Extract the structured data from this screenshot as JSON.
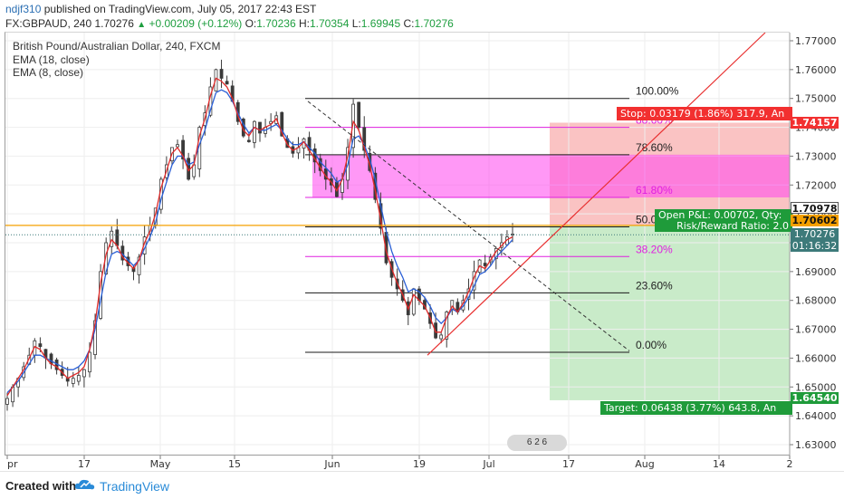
{
  "header": {
    "author": "ndjf310",
    "published_text": "published on TradingView.com, July 05, 2017 22:43 EST",
    "symbol": "FX:GBPAUD, 240",
    "last": "1.70276",
    "change": "+0.00209 (+0.12%)",
    "o_label": "O:",
    "o_value": "1.70236",
    "h_label": "H:",
    "h_value": "1.70354",
    "l_label": "L:",
    "l_value": "1.69945",
    "c_label": "C:",
    "c_value": "1.70276"
  },
  "legend": {
    "title": "British Pound/Australian Dollar, 240, FXCM",
    "ema1": "EMA (18, close)",
    "ema2": "EMA (8, close)"
  },
  "price_axis": {
    "ticks": [
      "1.77000",
      "1.76000",
      "1.75000",
      "1.74000",
      "1.73000",
      "1.72000",
      "1.71000",
      "1.70000",
      "1.69000",
      "1.68000",
      "1.67000",
      "1.66000",
      "1.65000",
      "1.64000",
      "1.63000"
    ],
    "tags": {
      "stop": "1.74157",
      "top": "1.70978",
      "entry": "1.70602",
      "last": "1.70276",
      "countdown": "01:16:32",
      "target": "1.64540"
    }
  },
  "time_axis": {
    "labels": [
      "pr",
      "17",
      "May",
      "15",
      "Jun",
      "19",
      "Jul",
      "17",
      "Aug",
      "14",
      "2"
    ]
  },
  "fib": {
    "levels": [
      {
        "label": "100.00%",
        "price": 1.75
      },
      {
        "label": "88.60%",
        "price": 1.74
      },
      {
        "label": "78.60%",
        "price": 1.7305
      },
      {
        "label": "61.80%",
        "price": 1.7157
      },
      {
        "label": "50.00%",
        "price": 1.7055
      },
      {
        "label": "38.20%",
        "price": 1.6952
      },
      {
        "label": "23.60%",
        "price": 1.6826
      },
      {
        "label": "0.00%",
        "price": 1.662
      }
    ]
  },
  "position": {
    "stop_text": "Stop: 0.03179 (1.86%) 317.9, An",
    "open_pl_text": "Open P&L: 0.00702, Qty:",
    "rr_text": "Risk/Reward Ratio: 2.0",
    "target_text": "Target: 0.06438 (3.77%) 643.8, An"
  },
  "events_icon_text": "6 2 6",
  "footer": {
    "created": "Created with",
    "brand": "TradingView"
  },
  "chart_data": {
    "type": "candlestick",
    "title": "British Pound/Australian Dollar, 240, FXCM",
    "ylim": [
      1.627,
      1.773
    ],
    "x": [
      "pr",
      "17",
      "May",
      "15",
      "Jun",
      "19",
      "Jul",
      "17",
      "Aug",
      "14",
      "2"
    ],
    "close_path": [
      1.646,
      1.65,
      1.653,
      1.657,
      1.661,
      1.666,
      1.664,
      1.66,
      1.658,
      1.656,
      1.654,
      1.652,
      1.653,
      1.654,
      1.656,
      1.662,
      1.673,
      1.69,
      1.7,
      1.704,
      1.699,
      1.694,
      1.692,
      1.69,
      1.695,
      1.702,
      1.706,
      1.712,
      1.722,
      1.727,
      1.733,
      1.734,
      1.729,
      1.722,
      1.727,
      1.74,
      1.745,
      1.754,
      1.76,
      1.757,
      1.755,
      1.749,
      1.742,
      1.737,
      1.735,
      1.742,
      1.738,
      1.74,
      1.742,
      1.744,
      1.737,
      1.733,
      1.731,
      1.733,
      1.736,
      1.732,
      1.728,
      1.725,
      1.722,
      1.72,
      1.716,
      1.722,
      1.733,
      1.748,
      1.74,
      1.732,
      1.725,
      1.715,
      1.705,
      1.693,
      1.688,
      1.684,
      1.68,
      1.675,
      1.684,
      1.68,
      1.677,
      1.672,
      1.667,
      1.668,
      1.676,
      1.68,
      1.676,
      1.68,
      1.684,
      1.69,
      1.694,
      1.692,
      1.695,
      1.698,
      1.7,
      1.702,
      1.703
    ],
    "ema18_path": [
      1.648,
      1.65,
      1.652,
      1.655,
      1.658,
      1.661,
      1.661,
      1.66,
      1.659,
      1.658,
      1.657,
      1.656,
      1.656,
      1.657,
      1.659,
      1.663,
      1.67,
      1.68,
      1.69,
      1.696,
      1.697,
      1.696,
      1.694,
      1.692,
      1.694,
      1.698,
      1.702,
      1.707,
      1.715,
      1.721,
      1.727,
      1.73,
      1.73,
      1.727,
      1.728,
      1.734,
      1.739,
      1.746,
      1.752,
      1.753,
      1.752,
      1.749,
      1.745,
      1.741,
      1.738,
      1.74,
      1.739,
      1.739,
      1.74,
      1.741,
      1.739,
      1.736,
      1.734,
      1.734,
      1.735,
      1.733,
      1.731,
      1.728,
      1.726,
      1.724,
      1.721,
      1.722,
      1.727,
      1.736,
      1.737,
      1.734,
      1.729,
      1.722,
      1.713,
      1.704,
      1.697,
      1.692,
      1.688,
      1.683,
      1.684,
      1.683,
      1.681,
      1.678,
      1.674,
      1.672,
      1.674,
      1.677,
      1.676,
      1.678,
      1.681,
      1.685,
      1.689,
      1.69,
      1.692,
      1.695,
      1.697,
      1.699,
      1.701
    ],
    "ema8_path": [
      1.647,
      1.65,
      1.653,
      1.656,
      1.66,
      1.664,
      1.663,
      1.66,
      1.658,
      1.657,
      1.655,
      1.653,
      1.654,
      1.655,
      1.657,
      1.663,
      1.672,
      1.686,
      1.696,
      1.701,
      1.699,
      1.695,
      1.693,
      1.691,
      1.694,
      1.7,
      1.704,
      1.71,
      1.719,
      1.725,
      1.731,
      1.733,
      1.73,
      1.725,
      1.727,
      1.737,
      1.743,
      1.751,
      1.757,
      1.756,
      1.754,
      1.75,
      1.744,
      1.739,
      1.737,
      1.74,
      1.739,
      1.74,
      1.741,
      1.743,
      1.738,
      1.734,
      1.732,
      1.733,
      1.735,
      1.732,
      1.729,
      1.726,
      1.723,
      1.721,
      1.718,
      1.722,
      1.73,
      1.742,
      1.739,
      1.733,
      1.727,
      1.718,
      1.708,
      1.697,
      1.691,
      1.686,
      1.682,
      1.677,
      1.682,
      1.68,
      1.678,
      1.674,
      1.669,
      1.669,
      1.674,
      1.678,
      1.676,
      1.679,
      1.683,
      1.688,
      1.692,
      1.691,
      1.694,
      1.697,
      1.699,
      1.701,
      1.702
    ]
  },
  "colors": {
    "up_candle": "#3a3a3a",
    "ema18": "#2a5fd6",
    "ema8": "#e02a2a",
    "fib_black": "#1a1a1a",
    "fib_magenta": "#e020e0",
    "magenta_box": "#ff44ee",
    "stop_zone": "#f9b8b8",
    "target_zone": "#bfe8bf",
    "stop_badge": "#f23030",
    "target_badge": "#1f9b3a",
    "entry_line": "#f5a000",
    "trend_line": "#e83030"
  }
}
